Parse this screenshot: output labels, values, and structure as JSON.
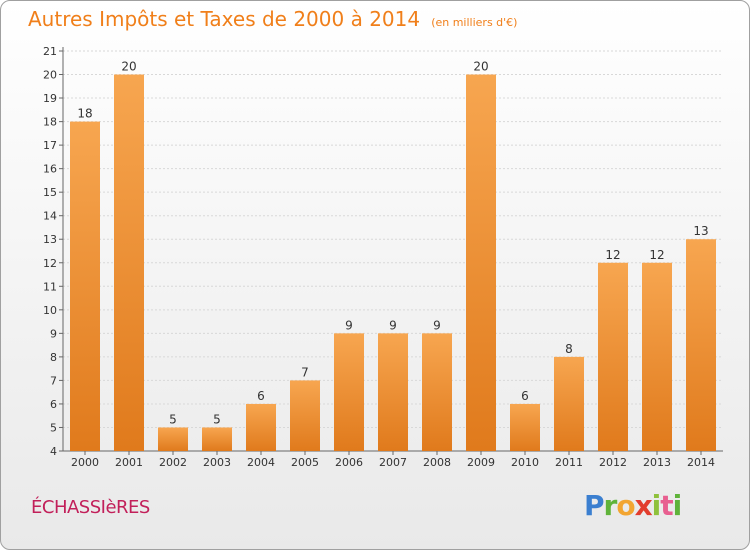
{
  "title": "Autres Impôts et Taxes de 2000 à 2014",
  "subtitle": "(en milliers d'€)",
  "commune": "ÉCHASSIèRES",
  "logo": {
    "p": "P",
    "r": "r",
    "o": "o",
    "x": "x",
    "i": "i",
    "t": "t",
    "i2": "i"
  },
  "colors": {
    "bar_light": "#f7a650",
    "bar_dark": "#e07a1c",
    "title": "#f07f1a",
    "commune": "#c2205a"
  },
  "chart_data": {
    "type": "bar",
    "title": "Autres Impôts et Taxes de 2000 à 2014",
    "subtitle": "(en milliers d'€)",
    "xlabel": "",
    "ylabel": "",
    "categories": [
      "2000",
      "2001",
      "2002",
      "2003",
      "2004",
      "2005",
      "2006",
      "2007",
      "2008",
      "2009",
      "2010",
      "2011",
      "2012",
      "2013",
      "2014"
    ],
    "values": [
      18,
      20,
      5,
      5,
      6,
      7,
      9,
      9,
      9,
      20,
      6,
      8,
      12,
      12,
      13
    ],
    "ylim": [
      4,
      21
    ],
    "yticks": [
      4,
      5,
      6,
      7,
      8,
      9,
      10,
      11,
      12,
      13,
      14,
      15,
      16,
      17,
      18,
      19,
      20,
      21
    ],
    "grid": true,
    "legend": "none"
  }
}
